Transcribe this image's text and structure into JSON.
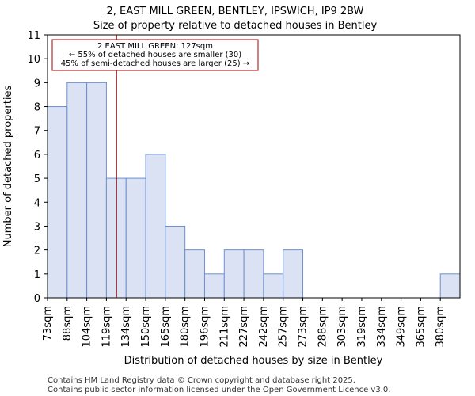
{
  "chart_data": {
    "type": "bar",
    "title": "2, EAST MILL GREEN, BENTLEY, IPSWICH, IP9 2BW",
    "subtitle": "Size of property relative to detached houses in Bentley",
    "xlabel": "Distribution of detached houses by size in Bentley",
    "ylabel": "Number of detached properties",
    "categories": [
      "73sqm",
      "88sqm",
      "104sqm",
      "119sqm",
      "134sqm",
      "150sqm",
      "165sqm",
      "180sqm",
      "196sqm",
      "211sqm",
      "227sqm",
      "242sqm",
      "257sqm",
      "273sqm",
      "288sqm",
      "303sqm",
      "319sqm",
      "334sqm",
      "349sqm",
      "365sqm",
      "380sqm"
    ],
    "values": [
      8,
      9,
      9,
      5,
      5,
      6,
      3,
      2,
      1,
      2,
      2,
      1,
      2,
      0,
      0,
      0,
      0,
      0,
      0,
      0,
      1
    ],
    "ylim": [
      0,
      11
    ],
    "yticks": [
      0,
      1,
      2,
      3,
      4,
      5,
      6,
      7,
      8,
      9,
      10,
      11
    ],
    "bar_fill": "#dae2f3",
    "bar_edge": "#6d8fd0",
    "marker": {
      "value_sqm": 127,
      "color": "#aa0000",
      "lines": [
        "2 EAST MILL GREEN: 127sqm",
        "← 55% of detached houses are smaller (30)",
        "45% of semi-detached houses are larger (25) →"
      ]
    }
  },
  "footer": {
    "line1": "Contains HM Land Registry data © Crown copyright and database right 2025.",
    "line2": "Contains public sector information licensed under the Open Government Licence v3.0."
  }
}
